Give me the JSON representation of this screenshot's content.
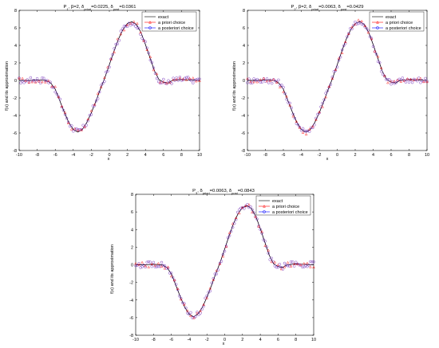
{
  "colors": {
    "exact": "#000000",
    "a_priori": "#ff0000",
    "a_posteriori": "#0000ff",
    "marker_face": "#7f3fbf"
  },
  "chart_data": [
    {
      "type": "line",
      "title": {
        "parts": [
          {
            "t": "P",
            "sub": false
          },
          {
            "t": "1",
            "sub": true
          },
          {
            "t": ", β=2, δ",
            "sub": false
          },
          {
            "t": "priori",
            "sub": true
          },
          {
            "t": "=0.0225, δ",
            "sub": false
          },
          {
            "t": "post",
            "sub": true
          },
          {
            "t": "=0.0361",
            "sub": false
          }
        ]
      },
      "xlabel": "x",
      "ylabel": "f(x) and its approximation",
      "xlim": [
        -10,
        10
      ],
      "ylim": [
        -8,
        8
      ],
      "xticks": [
        "-10",
        "-8",
        "-6",
        "-4",
        "-2",
        "0",
        "2",
        "4",
        "6",
        "8",
        "10"
      ],
      "yticks": [
        "-8",
        "-6",
        "-4",
        "-2",
        "0",
        "2",
        "4",
        "6",
        "8"
      ],
      "legend_position": "top-right",
      "series": [
        {
          "name": "exact",
          "style": "solid-line",
          "color": "#000000"
        },
        {
          "name": "a priori choice",
          "style": "line-triangle-markers",
          "color": "#ff0000"
        },
        {
          "name": "a posteriori choice",
          "style": "line-circle-markers",
          "color": "#0000ff"
        }
      ],
      "x": [
        -10,
        -9,
        -8,
        -7,
        -6.5,
        -6,
        -5.5,
        -5,
        -4.5,
        -4,
        -3.5,
        -3,
        -2.5,
        -2,
        -1.5,
        -1,
        -0.5,
        0,
        0.5,
        1,
        1.5,
        2,
        2.5,
        3,
        3.5,
        4,
        4.5,
        5,
        5.5,
        6,
        6.5,
        7,
        8,
        9,
        10
      ],
      "exact_y": [
        0.0,
        0.0,
        0.05,
        0.0,
        -0.3,
        -1.0,
        -2.3,
        -3.6,
        -4.8,
        -5.6,
        -5.9,
        -5.6,
        -4.8,
        -3.7,
        -2.4,
        -1.0,
        0.3,
        1.8,
        3.3,
        4.7,
        5.8,
        6.5,
        6.7,
        6.4,
        5.5,
        4.1,
        2.6,
        1.1,
        0.1,
        -0.2,
        -0.3,
        0.0,
        0.1,
        0.05,
        0.0
      ]
    },
    {
      "type": "line",
      "title": {
        "parts": [
          {
            "t": "P",
            "sub": false
          },
          {
            "t": "2",
            "sub": true
          },
          {
            "t": ", β=2, δ",
            "sub": false
          },
          {
            "t": "priori",
            "sub": true
          },
          {
            "t": "=0.0063, δ",
            "sub": false
          },
          {
            "t": "post",
            "sub": true
          },
          {
            "t": "=0.0429",
            "sub": false
          }
        ]
      },
      "xlabel": "x",
      "ylabel": "f(x) and its approximation",
      "xlim": [
        -10,
        10
      ],
      "ylim": [
        -8,
        8
      ],
      "xticks": [
        "-10",
        "-8",
        "-6",
        "-4",
        "-2",
        "0",
        "2",
        "4",
        "6",
        "8",
        "10"
      ],
      "yticks": [
        "-8",
        "-6",
        "-4",
        "-2",
        "0",
        "2",
        "4",
        "6",
        "8"
      ],
      "legend_position": "top-right",
      "series": [
        {
          "name": "exact",
          "style": "solid-line",
          "color": "#000000"
        },
        {
          "name": "a priori choice",
          "style": "line-triangle-markers",
          "color": "#ff0000"
        },
        {
          "name": "a posteriori choice",
          "style": "line-circle-markers",
          "color": "#0000ff"
        }
      ],
      "x": [
        -10,
        -9,
        -8,
        -7,
        -6.5,
        -6,
        -5.5,
        -5,
        -4.5,
        -4,
        -3.5,
        -3,
        -2.5,
        -2,
        -1.5,
        -1,
        -0.5,
        0,
        0.5,
        1,
        1.5,
        2,
        2.5,
        3,
        3.5,
        4,
        4.5,
        5,
        5.5,
        6,
        6.5,
        7,
        8,
        9,
        10
      ],
      "exact_y": [
        0.0,
        0.0,
        0.05,
        0.0,
        -0.3,
        -1.0,
        -2.3,
        -3.6,
        -4.8,
        -5.6,
        -5.9,
        -5.6,
        -4.8,
        -3.7,
        -2.4,
        -1.0,
        0.3,
        1.8,
        3.3,
        4.7,
        5.8,
        6.5,
        6.7,
        6.4,
        5.5,
        4.1,
        2.6,
        1.1,
        0.1,
        -0.2,
        -0.3,
        0.0,
        0.1,
        0.05,
        0.0
      ]
    },
    {
      "type": "line",
      "title": {
        "parts": [
          {
            "t": "P",
            "sub": false
          },
          {
            "t": "3",
            "sub": true
          },
          {
            "t": ", δ",
            "sub": false
          },
          {
            "t": "priori",
            "sub": true
          },
          {
            "t": "=0.0063, δ",
            "sub": false
          },
          {
            "t": "post",
            "sub": true
          },
          {
            "t": "=0.0843",
            "sub": false
          }
        ]
      },
      "xlabel": "x",
      "ylabel": "f(x) and its approximation",
      "xlim": [
        -10,
        10
      ],
      "ylim": [
        -8,
        8
      ],
      "xticks": [
        "-10",
        "-8",
        "-6",
        "-4",
        "-2",
        "0",
        "2",
        "4",
        "6",
        "8",
        "10"
      ],
      "yticks": [
        "-8",
        "-6",
        "-4",
        "-2",
        "0",
        "2",
        "4",
        "6",
        "8"
      ],
      "legend_position": "top-right",
      "series": [
        {
          "name": "exact",
          "style": "solid-line",
          "color": "#000000"
        },
        {
          "name": "a priori choice",
          "style": "line-triangle-markers",
          "color": "#ff0000"
        },
        {
          "name": "a posteriori choice",
          "style": "line-circle-markers",
          "color": "#0000ff"
        }
      ],
      "x": [
        -10,
        -9,
        -8,
        -7,
        -6.5,
        -6,
        -5.5,
        -5,
        -4.5,
        -4,
        -3.5,
        -3,
        -2.5,
        -2,
        -1.5,
        -1,
        -0.5,
        0,
        0.5,
        1,
        1.5,
        2,
        2.5,
        3,
        3.5,
        4,
        4.5,
        5,
        5.5,
        6,
        6.5,
        7,
        8,
        9,
        10
      ],
      "exact_y": [
        0.0,
        0.0,
        0.05,
        0.0,
        -0.3,
        -1.0,
        -2.3,
        -3.6,
        -4.8,
        -5.6,
        -5.9,
        -5.6,
        -4.8,
        -3.7,
        -2.4,
        -1.0,
        0.3,
        1.8,
        3.3,
        4.7,
        5.8,
        6.5,
        6.7,
        6.4,
        5.5,
        4.1,
        2.6,
        1.1,
        0.1,
        -0.2,
        -0.3,
        0.0,
        0.1,
        0.05,
        0.0
      ]
    }
  ]
}
